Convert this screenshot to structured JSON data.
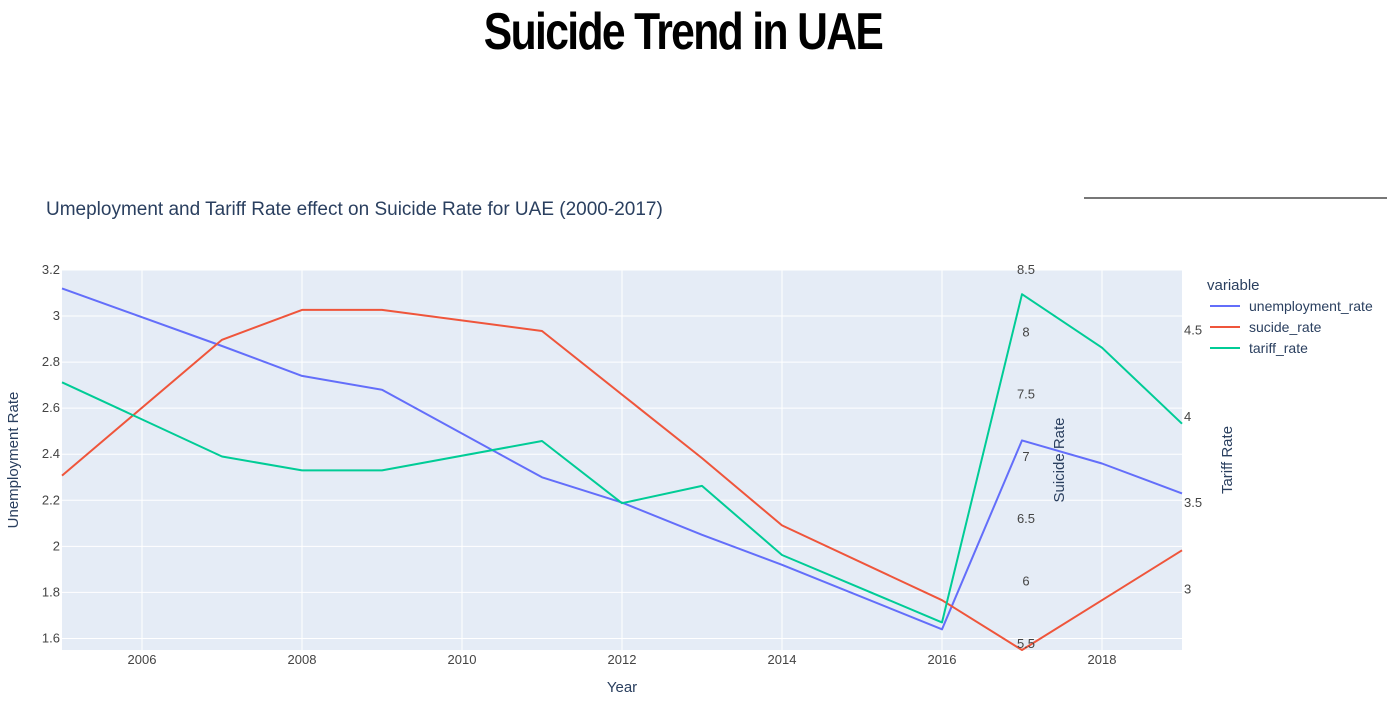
{
  "page": {
    "title": "Suicide Trend in UAE"
  },
  "chart_data": {
    "type": "line",
    "title": "Umeployment and Tariff Rate effect on Suicide Rate for UAE (2000-2017)",
    "xlabel": "Year",
    "xlim": [
      2005,
      2019
    ],
    "x_ticks": [
      2006,
      2008,
      2010,
      2012,
      2014,
      2016,
      2018
    ],
    "x": [
      2005,
      2007,
      2008,
      2009,
      2011,
      2012,
      2013,
      2014,
      2016,
      2017,
      2018,
      2019
    ],
    "axes": {
      "y": {
        "label": "Unemployment Rate",
        "range": [
          1.55,
          3.2
        ],
        "ticks": [
          1.6,
          1.8,
          2,
          2.2,
          2.4,
          2.6,
          2.8,
          3,
          3.2
        ]
      },
      "y2": {
        "label": "Suicide Rate",
        "range": [
          5.45,
          8.5
        ],
        "ticks": [
          5.5,
          6,
          6.5,
          7,
          7.5,
          8,
          8.5
        ]
      },
      "y3": {
        "label": "Tariff Rate",
        "range": [
          2.65,
          4.85
        ],
        "ticks": [
          3,
          3.5,
          4,
          4.5
        ]
      }
    },
    "series": [
      {
        "name": "unemployment_rate",
        "axis": "y",
        "color": "#636efa",
        "values": [
          3.12,
          2.87,
          2.74,
          2.68,
          2.3,
          2.19,
          2.05,
          1.92,
          1.64,
          2.46,
          2.36,
          2.23
        ]
      },
      {
        "name": "sucide_rate",
        "axis": "y2",
        "color": "#ef553b",
        "values": [
          6.85,
          7.94,
          8.18,
          8.18,
          8.01,
          7.5,
          6.99,
          6.45,
          5.85,
          5.45,
          5.85,
          6.25
        ]
      },
      {
        "name": "tariff_rate",
        "axis": "y3",
        "color": "#00cc96",
        "values": [
          4.2,
          3.77,
          3.69,
          3.69,
          3.86,
          3.5,
          3.6,
          3.2,
          2.81,
          4.71,
          4.4,
          3.96
        ]
      }
    ],
    "legend": {
      "title": "variable",
      "position": "top-right"
    },
    "grid": true,
    "colors": {
      "plot_bg": "#e5ecf6",
      "grid": "#ffffff"
    }
  }
}
